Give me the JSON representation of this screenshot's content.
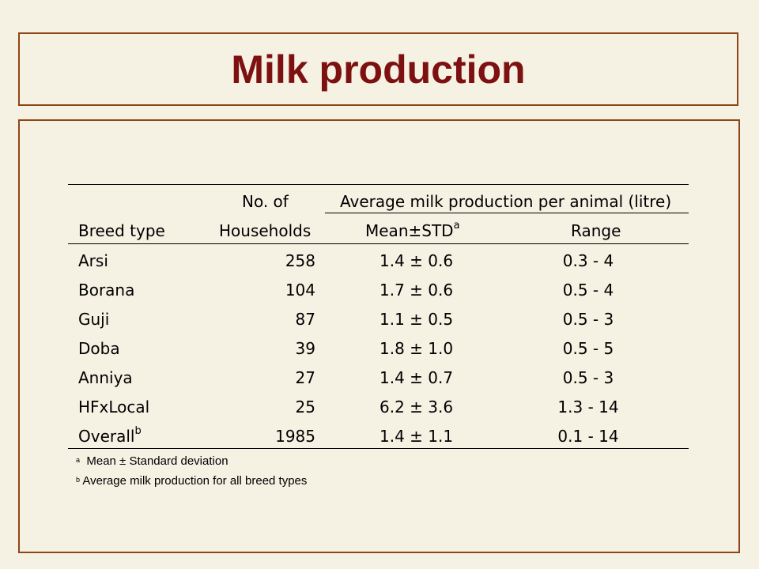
{
  "title": "Milk production",
  "table": {
    "header_top": {
      "households_line1": "No. of",
      "spanning": "Average milk production per animal (litre)"
    },
    "header_bottom": {
      "breed": "Breed type",
      "households_line2": "Households",
      "mean": "Mean±STD",
      "mean_sup": "a",
      "range": "Range"
    },
    "rows": [
      {
        "breed": "Arsi",
        "sup": "",
        "households": "258",
        "mean": "1.4 ± 0.6",
        "range": "0.3 - 4"
      },
      {
        "breed": "Borana",
        "sup": "",
        "households": "104",
        "mean": "1.7 ± 0.6",
        "range": "0.5 - 4"
      },
      {
        "breed": "Guji",
        "sup": "",
        "households": "87",
        "mean": "1.1 ± 0.5",
        "range": "0.5 - 3"
      },
      {
        "breed": "Doba",
        "sup": "",
        "households": "39",
        "mean": "1.8 ± 1.0",
        "range": "0.5 - 5"
      },
      {
        "breed": "Anniya",
        "sup": "",
        "households": "27",
        "mean": "1.4 ± 0.7",
        "range": "0.5 - 3"
      },
      {
        "breed": "HFxLocal",
        "sup": "",
        "households": "25",
        "mean": "6.2 ± 3.6",
        "range": "1.3 - 14"
      },
      {
        "breed": "Overall",
        "sup": "b",
        "households": "1985",
        "mean": "1.4 ± 1.1",
        "range": "0.1 - 14"
      }
    ]
  },
  "footnotes": [
    {
      "marker": "a",
      "text": "  Mean ± Standard deviation"
    },
    {
      "marker": "b",
      "text": " Average milk production for all breed types"
    }
  ],
  "colors": {
    "background": "#f5f1e3",
    "frame": "#8f4514",
    "title": "#7d1111"
  }
}
